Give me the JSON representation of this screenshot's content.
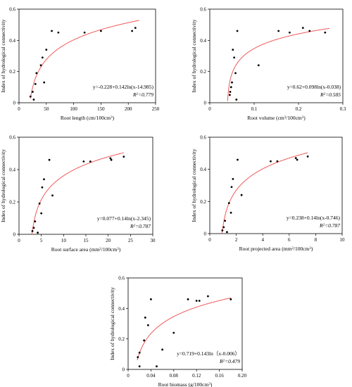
{
  "colors": {
    "curve": "#f05a5a",
    "point": "#000000",
    "axis": "#000000"
  },
  "chart_data": [
    {
      "type": "scatter",
      "xlabel": "Root length (cm/100cm³)",
      "ylabel": "Index of hydrological connectivity",
      "xlim": [
        0,
        250
      ],
      "ylim": [
        0,
        0.6
      ],
      "xticks": [
        0,
        50,
        100,
        150,
        200,
        250
      ],
      "yticks": [
        0,
        0.2,
        0.4,
        0.6
      ],
      "yticklabels": [
        "0",
        "0.2",
        "0.4",
        "0.6"
      ],
      "equation": "y=-0.228+0.142ln(x-14.985)",
      "r2_label": "R²=0.779",
      "fit": {
        "a": -0.228,
        "b": 0.142,
        "c": 14.985,
        "x_from": 21,
        "x_to": 220
      },
      "points": [
        {
          "x": 21,
          "y": 0.04
        },
        {
          "x": 25,
          "y": 0.07
        },
        {
          "x": 27,
          "y": 0.02
        },
        {
          "x": 30,
          "y": 0.12
        },
        {
          "x": 32,
          "y": 0.19
        },
        {
          "x": 40,
          "y": 0.24
        },
        {
          "x": 43,
          "y": 0.29
        },
        {
          "x": 46,
          "y": 0.13
        },
        {
          "x": 50,
          "y": 0.34
        },
        {
          "x": 60,
          "y": 0.46
        },
        {
          "x": 72,
          "y": 0.45
        },
        {
          "x": 120,
          "y": 0.45
        },
        {
          "x": 150,
          "y": 0.46
        },
        {
          "x": 207,
          "y": 0.46
        },
        {
          "x": 213,
          "y": 0.48
        }
      ]
    },
    {
      "type": "scatter",
      "xlabel": "Root volume (cm³/100cm³)",
      "ylabel": "Index of hydrological connectivity",
      "xlim": [
        0,
        0.3
      ],
      "ylim": [
        0,
        0.6
      ],
      "xticks": [
        0,
        0.1,
        0.2,
        0.3
      ],
      "xticklabels": [
        "0",
        "0.1",
        "0.2",
        "0.3"
      ],
      "yticks": [
        0,
        0.2,
        0.4,
        0.6
      ],
      "yticklabels": [
        "0",
        "0.2",
        "0.4",
        "0.6"
      ],
      "equation": "y=0.62+0.098ln(x-0.038)",
      "r2_label": "R²=0.585",
      "fit": {
        "a": 0.62,
        "b": 0.098,
        "c": 0.038,
        "x_from": 0.04,
        "x_to": 0.27
      },
      "points": [
        {
          "x": 0.045,
          "y": 0.05
        },
        {
          "x": 0.046,
          "y": 0.07
        },
        {
          "x": 0.048,
          "y": 0.1
        },
        {
          "x": 0.05,
          "y": 0.13
        },
        {
          "x": 0.052,
          "y": 0.34
        },
        {
          "x": 0.055,
          "y": 0.29
        },
        {
          "x": 0.058,
          "y": 0.19
        },
        {
          "x": 0.06,
          "y": 0.02
        },
        {
          "x": 0.062,
          "y": 0.46
        },
        {
          "x": 0.11,
          "y": 0.24
        },
        {
          "x": 0.155,
          "y": 0.46
        },
        {
          "x": 0.18,
          "y": 0.45
        },
        {
          "x": 0.21,
          "y": 0.48
        },
        {
          "x": 0.225,
          "y": 0.46
        },
        {
          "x": 0.26,
          "y": 0.45
        }
      ]
    },
    {
      "type": "scatter",
      "xlabel": "Root surface area (mm²/100cm³)",
      "ylabel": "Index of hydrological connectivity",
      "xlim": [
        0,
        30
      ],
      "ylim": [
        0,
        0.6
      ],
      "xticks": [
        0,
        5,
        10,
        15,
        20,
        25,
        30
      ],
      "yticks": [
        0,
        0.2,
        0.4,
        0.6
      ],
      "yticklabels": [
        "0",
        "0.2",
        "0.4",
        "0.6"
      ],
      "equation": "y=0.077+0.14ln(x-2.345)",
      "r2_label": "R²=0.787",
      "fit": {
        "a": 0.077,
        "b": 0.14,
        "c": 2.345,
        "x_from": 2.8,
        "x_to": 23.5
      },
      "points": [
        {
          "x": 3,
          "y": 0.02
        },
        {
          "x": 3.3,
          "y": 0.04
        },
        {
          "x": 3.6,
          "y": 0.08
        },
        {
          "x": 4.2,
          "y": 0.01
        },
        {
          "x": 4.6,
          "y": 0.19
        },
        {
          "x": 5,
          "y": 0.13
        },
        {
          "x": 5.2,
          "y": 0.29
        },
        {
          "x": 5.6,
          "y": 0.34
        },
        {
          "x": 6.8,
          "y": 0.46
        },
        {
          "x": 7.5,
          "y": 0.24
        },
        {
          "x": 14.5,
          "y": 0.45
        },
        {
          "x": 16,
          "y": 0.45
        },
        {
          "x": 20.5,
          "y": 0.47
        },
        {
          "x": 20.7,
          "y": 0.46
        },
        {
          "x": 23.5,
          "y": 0.48
        }
      ]
    },
    {
      "type": "scatter",
      "xlabel": "Root projected area (mm²/100cm³)",
      "ylabel": "Index of hydrological connectivity",
      "xlim": [
        0,
        10
      ],
      "ylim": [
        0,
        0.6
      ],
      "xticks": [
        0,
        2,
        4,
        6,
        8,
        10
      ],
      "yticks": [
        0,
        0.2,
        0.4,
        0.6
      ],
      "yticklabels": [
        "0",
        "0.2",
        "0.4",
        "0.6"
      ],
      "equation": "y=0.238+0.14ln(x-0.746)",
      "r2_label": "R²=0.787",
      "fit": {
        "a": 0.238,
        "b": 0.14,
        "c": 0.746,
        "x_from": 0.9,
        "x_to": 7.4
      },
      "points": [
        {
          "x": 0.95,
          "y": 0.02
        },
        {
          "x": 1.05,
          "y": 0.04
        },
        {
          "x": 1.15,
          "y": 0.08
        },
        {
          "x": 1.3,
          "y": 0.01
        },
        {
          "x": 1.45,
          "y": 0.19
        },
        {
          "x": 1.6,
          "y": 0.13
        },
        {
          "x": 1.65,
          "y": 0.29
        },
        {
          "x": 1.75,
          "y": 0.34
        },
        {
          "x": 2.1,
          "y": 0.46
        },
        {
          "x": 2.4,
          "y": 0.24
        },
        {
          "x": 4.6,
          "y": 0.45
        },
        {
          "x": 5.1,
          "y": 0.45
        },
        {
          "x": 6.5,
          "y": 0.47
        },
        {
          "x": 6.6,
          "y": 0.46
        },
        {
          "x": 7.4,
          "y": 0.48
        }
      ]
    },
    {
      "type": "scatter",
      "xlabel": "Root biomass (g/100cm³)",
      "ylabel": "Index of hydrological connectivity",
      "xlim": [
        0,
        0.2
      ],
      "ylim": [
        0,
        0.6
      ],
      "xticks": [
        0,
        0.04,
        0.08,
        0.12,
        0.16,
        0.2
      ],
      "xticklabels": [
        "0",
        "0.04",
        "0.08",
        "0.12",
        "0.16",
        "0.20"
      ],
      "yticks": [
        0,
        0.2,
        0.4,
        0.6
      ],
      "yticklabels": [
        "0",
        "0.2",
        "0.4",
        "0.6"
      ],
      "equation": "y=0.719+0.143ln（x-0.006）",
      "r2_label": "R²=0.479",
      "fit": {
        "a": 0.719,
        "b": 0.143,
        "c": 0.006,
        "x_from": 0.016,
        "x_to": 0.18
      },
      "points": [
        {
          "x": 0.017,
          "y": 0.08
        },
        {
          "x": 0.02,
          "y": 0.11
        },
        {
          "x": 0.02,
          "y": 0.02
        },
        {
          "x": 0.028,
          "y": 0.19
        },
        {
          "x": 0.03,
          "y": 0.34
        },
        {
          "x": 0.035,
          "y": 0.29
        },
        {
          "x": 0.04,
          "y": 0.46
        },
        {
          "x": 0.05,
          "y": 0.02
        },
        {
          "x": 0.06,
          "y": 0.13
        },
        {
          "x": 0.08,
          "y": 0.24
        },
        {
          "x": 0.105,
          "y": 0.46
        },
        {
          "x": 0.12,
          "y": 0.45
        },
        {
          "x": 0.125,
          "y": 0.45
        },
        {
          "x": 0.14,
          "y": 0.48
        },
        {
          "x": 0.18,
          "y": 0.46
        }
      ]
    }
  ]
}
